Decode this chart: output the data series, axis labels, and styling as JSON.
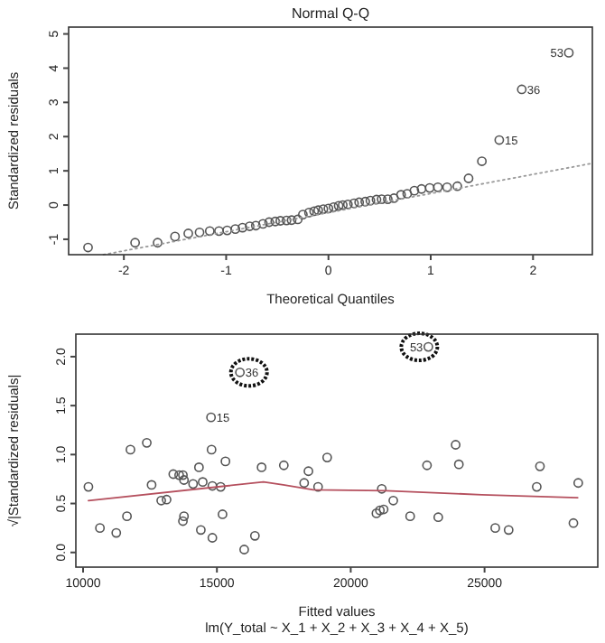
{
  "chart_data": [
    {
      "type": "scatter",
      "title": "Normal Q-Q",
      "xlabel": "Theoretical Quantiles",
      "ylabel": "Standardized residuals",
      "xlim": [
        -2.54,
        2.58
      ],
      "ylim": [
        -1.45,
        5.2
      ],
      "xticks": [
        -2,
        -1,
        0,
        1,
        2
      ],
      "yticks": [
        -1,
        0,
        1,
        2,
        3,
        4,
        5
      ],
      "series": [
        {
          "type": "scatter",
          "marker": "circle",
          "color": "#555555",
          "x": [
            -2.35,
            -1.89,
            -1.67,
            -1.5,
            -1.37,
            -1.26,
            -1.16,
            -1.07,
            -0.99,
            -0.91,
            -0.84,
            -0.77,
            -0.71,
            -0.64,
            -0.58,
            -0.52,
            -0.47,
            -0.41,
            -0.36,
            -0.3,
            -0.25,
            -0.19,
            -0.14,
            -0.1,
            -0.05,
            0,
            0.05,
            0.1,
            0.14,
            0.19,
            0.25,
            0.3,
            0.36,
            0.41,
            0.47,
            0.52,
            0.58,
            0.64,
            0.71,
            0.77,
            0.84,
            0.91,
            0.99,
            1.07,
            1.16,
            1.26,
            1.37,
            1.5,
            1.67,
            1.89,
            2.35
          ],
          "values": [
            -1.24,
            -1.1,
            -1.1,
            -0.92,
            -0.83,
            -0.8,
            -0.76,
            -0.76,
            -0.74,
            -0.7,
            -0.66,
            -0.62,
            -0.6,
            -0.55,
            -0.5,
            -0.48,
            -0.46,
            -0.45,
            -0.44,
            -0.42,
            -0.28,
            -0.22,
            -0.18,
            -0.15,
            -0.12,
            -0.1,
            -0.06,
            -0.02,
            0.0,
            0.02,
            0.05,
            0.08,
            0.1,
            0.13,
            0.16,
            0.17,
            0.17,
            0.2,
            0.3,
            0.33,
            0.42,
            0.47,
            0.5,
            0.52,
            0.52,
            0.55,
            0.78,
            1.28,
            1.9,
            3.38,
            4.45
          ]
        },
        {
          "type": "line",
          "line_style": "dotted",
          "color": "#999999",
          "x": [
            -2.2,
            2.58
          ],
          "values": [
            -1.45,
            1.22
          ]
        }
      ],
      "annotations": [
        {
          "text": "15",
          "x": 1.67,
          "y": 1.9
        },
        {
          "text": "36",
          "x": 1.89,
          "y": 3.38
        },
        {
          "text": "53",
          "x": 2.35,
          "y": 4.45
        }
      ]
    },
    {
      "type": "scatter",
      "xlabel": "Fitted values",
      "subtitle": "lm(Y_total ~ X_1 + X_2 + X_3 + X_4 + X_5)",
      "ylabel": "√|Standardized residuals|",
      "xlim": [
        9730,
        29230
      ],
      "ylim": [
        -0.15,
        2.23
      ],
      "xticks": [
        10000,
        15000,
        20000,
        25000
      ],
      "yticks": [
        {
          "value": 0,
          "label": "0.0"
        },
        {
          "value": 0.5,
          "label": "0.5"
        },
        {
          "value": 1,
          "label": "1.0"
        },
        {
          "value": 1.5,
          "label": "1.5"
        },
        {
          "value": 2,
          "label": "2.0"
        }
      ],
      "series": [
        {
          "type": "scatter",
          "marker": "circle",
          "color": "#555555",
          "x": [
            10200,
            10630,
            11240,
            11640,
            11770,
            12380,
            12560,
            12920,
            13120,
            13370,
            13590,
            13730,
            13770,
            13770,
            13730,
            14110,
            14330,
            14400,
            14470,
            14780,
            14800,
            14830,
            15140,
            14830,
            15210,
            15320,
            16020,
            16420,
            16670,
            17500,
            18260,
            18420,
            18780,
            19120,
            15860,
            22900,
            20960,
            21090,
            21230,
            21160,
            21590,
            22220,
            22850,
            23270,
            23920,
            24040,
            25400,
            25900,
            26950,
            27070,
            28320,
            28500
          ],
          "values": [
            0.67,
            0.25,
            0.2,
            0.37,
            1.05,
            1.12,
            0.69,
            0.53,
            0.54,
            0.8,
            0.79,
            0.79,
            0.74,
            0.37,
            0.32,
            0.7,
            0.87,
            0.23,
            0.72,
            1.38,
            1.05,
            0.68,
            0.67,
            0.15,
            0.39,
            0.93,
            0.03,
            0.17,
            0.87,
            0.89,
            0.71,
            0.83,
            0.67,
            0.97,
            1.84,
            2.1,
            0.4,
            0.43,
            0.44,
            0.65,
            0.53,
            0.37,
            0.89,
            0.36,
            1.1,
            0.9,
            0.25,
            0.23,
            0.67,
            0.88,
            0.3,
            0.71
          ]
        },
        {
          "type": "line",
          "line_style": "solid",
          "color": "#b5505e",
          "x": [
            10200,
            16740,
            17480,
            18600,
            21300,
            24900,
            28480
          ],
          "values": [
            0.53,
            0.72,
            0.69,
            0.64,
            0.63,
            0.59,
            0.56
          ]
        }
      ],
      "annotations": [
        {
          "text": "15",
          "x": 14780,
          "y": 1.38
        },
        {
          "text": "36",
          "x": 15860,
          "y": 1.84
        },
        {
          "text": "53",
          "x": 22900,
          "y": 2.1
        }
      ]
    }
  ]
}
